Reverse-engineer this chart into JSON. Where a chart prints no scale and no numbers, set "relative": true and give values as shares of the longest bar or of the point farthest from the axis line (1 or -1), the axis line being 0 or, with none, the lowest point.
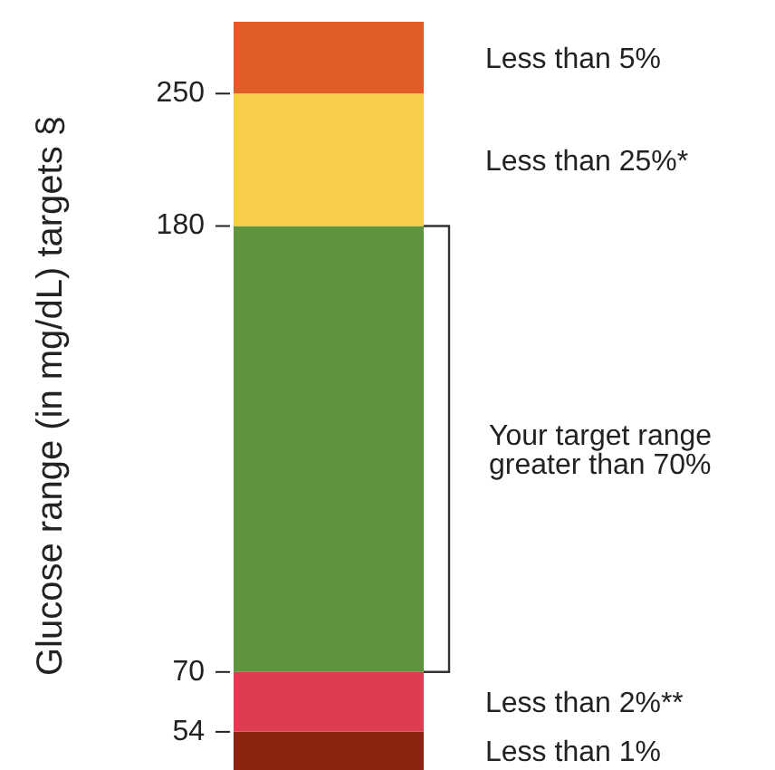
{
  "chart_data": {
    "type": "bar",
    "stacked": true,
    "relative": true,
    "ylabel": "Glucose range (in mg/dL) targets §",
    "categories": [
      null
    ],
    "series": [
      {
        "name": "Less than 1%",
        "color": "#8c2310",
        "values": [
          0.051
        ]
      },
      {
        "name": "Less than 2%**",
        "color": "#dc3d50",
        "values": [
          0.08
        ]
      },
      {
        "name": "Your target range greater than 70%",
        "color": "#5e943f",
        "values": [
          0.596
        ]
      },
      {
        "name": "Less than 25%*",
        "color": "#f6ce4b",
        "values": [
          0.177
        ]
      },
      {
        "name": "Less than 5%",
        "color": "#e05d2a",
        "values": [
          0.096
        ]
      }
    ],
    "annotations": [
      "250",
      "180",
      "70",
      "54"
    ],
    "legend": false
  }
}
